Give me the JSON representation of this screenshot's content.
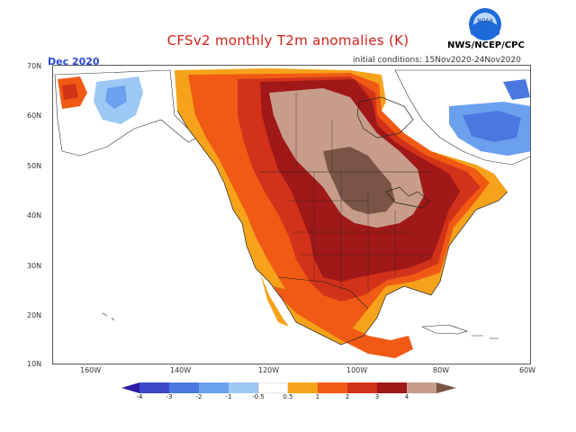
{
  "header": {
    "title": "CFSv2 monthly T2m anomalies (K)",
    "month": "Dec 2020",
    "initial_conditions": "initial conditions: 15Nov2020-24Nov2020",
    "agency": "NWS/NCEP/CPC",
    "logo_text": "NOAA"
  },
  "map": {
    "lat_labels": [
      "70N",
      "60N",
      "50N",
      "40N",
      "30N",
      "20N",
      "10N"
    ],
    "lon_labels": [
      "160W",
      "140W",
      "120W",
      "100W",
      "80W",
      "60W"
    ]
  },
  "colorbar": {
    "tick_labels": [
      "-4",
      "-3",
      "-2",
      "-1",
      "-0.5",
      "0.5",
      "1",
      "2",
      "3",
      "4"
    ],
    "colors": [
      "#2a1aa8",
      "#3a48c8",
      "#4a78e0",
      "#6aa0ee",
      "#9ec8f6",
      "#ffffff",
      "#f6a21a",
      "#f05a14",
      "#d2321a",
      "#a01818",
      "#c89c8a",
      "#7a5446"
    ]
  },
  "legend_colors": {
    "anom_0_5_1": "#f6a21a",
    "anom_1_2": "#f05a14",
    "anom_2_3": "#d2321a",
    "anom_3_4": "#a01818",
    "anom_4_plus": "#c89c8a",
    "anom_max": "#7a5446",
    "cold_1": "#9ec8f6",
    "cold_2": "#4a78e0"
  }
}
